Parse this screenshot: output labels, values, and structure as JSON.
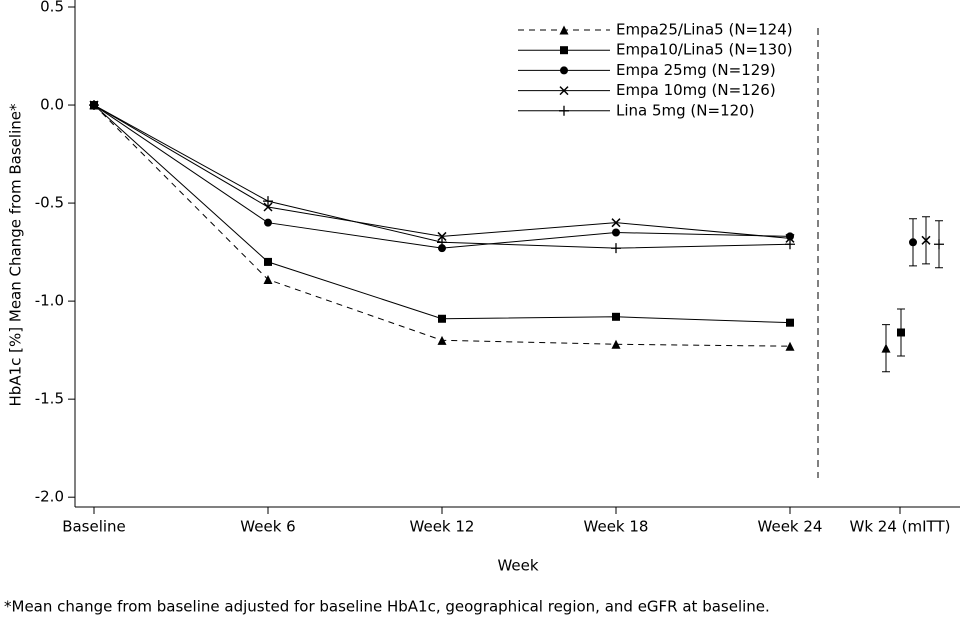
{
  "chart_data": {
    "type": "line",
    "x_label": "Week",
    "y_label": "HbA1c [%] Mean Change from Baseline*",
    "footnote": "*Mean change from baseline adjusted for baseline HbA1c, geographical region, and eGFR at baseline.",
    "categories": [
      "Baseline",
      "Week 6",
      "Week 12",
      "Week 18",
      "Week 24",
      "Wk 24 (mITT)"
    ],
    "ylim": [
      -2.05,
      0.5
    ],
    "yticks": [
      {
        "value": 0.5,
        "label": "0.5"
      },
      {
        "value": 0,
        "label": "0.0"
      },
      {
        "value": -0.5,
        "label": "-0.5"
      },
      {
        "value": -1,
        "label": "-1.0"
      },
      {
        "value": -1.5,
        "label": "-1.5"
      },
      {
        "value": -2,
        "label": "-2.0"
      }
    ],
    "series": [
      {
        "name": "Empa25/Lina5 (N=124)",
        "color": "#000000",
        "marker": "triangle",
        "dashed": true,
        "values": [
          0,
          -0.89,
          -1.2,
          -1.22,
          -1.23,
          null
        ],
        "mitt": {
          "value": -1.24,
          "error": 0.12
        }
      },
      {
        "name": "Empa10/Lina5 (N=130)",
        "color": "#000000",
        "marker": "square",
        "dashed": false,
        "values": [
          0,
          -0.8,
          -1.09,
          -1.08,
          -1.11,
          null
        ],
        "mitt": {
          "value": -1.16,
          "error": 0.12
        }
      },
      {
        "name": "Empa 25mg (N=129)",
        "color": "#000000",
        "marker": "circle",
        "dashed": false,
        "values": [
          0,
          -0.6,
          -0.73,
          -0.65,
          -0.67,
          null
        ],
        "mitt": {
          "value": -0.7,
          "error": 0.12
        }
      },
      {
        "name": "Empa 10mg (N=126)",
        "color": "#000000",
        "marker": "x",
        "dashed": false,
        "values": [
          0,
          -0.52,
          -0.67,
          -0.6,
          -0.68,
          null
        ],
        "mitt": {
          "value": -0.69,
          "error": 0.12
        }
      },
      {
        "name": "Lina 5mg (N=120)",
        "color": "#000000",
        "marker": "plus",
        "dashed": false,
        "values": [
          0,
          -0.49,
          -0.7,
          -0.73,
          -0.71,
          null
        ],
        "mitt": {
          "value": -0.71,
          "error": 0.12
        }
      }
    ]
  }
}
